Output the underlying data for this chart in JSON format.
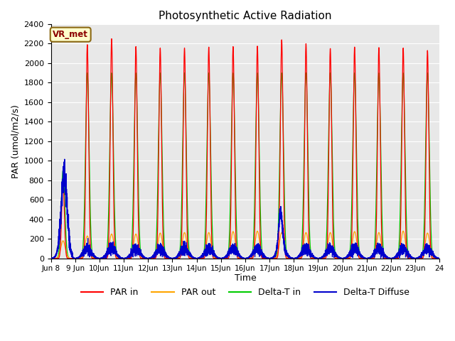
{
  "title": "Photosynthetic Active Radiation",
  "ylabel": "PAR (umol/m2/s)",
  "xlabel": "Time",
  "ylim": [
    0,
    2400
  ],
  "yticks": [
    0,
    200,
    400,
    600,
    800,
    1000,
    1200,
    1400,
    1600,
    1800,
    2000,
    2200,
    2400
  ],
  "xtick_positions": [
    0,
    1,
    2,
    3,
    4,
    5,
    6,
    7,
    8,
    9,
    10,
    11,
    12,
    13,
    14,
    15,
    16
  ],
  "xtick_labels": [
    "Jun 8",
    "9 Jun",
    "10Jun",
    "11Jun",
    "12Jun",
    "13Jun",
    "14Jun",
    "15Jun",
    "16Jun",
    "17Jun",
    "18Jun",
    "19Jun",
    "20Jun",
    "21Jun",
    "22Jun",
    "23Jun",
    "24"
  ],
  "colors": {
    "PAR_in": "#ff0000",
    "PAR_out": "#ffa500",
    "Delta_T_in": "#00cc00",
    "Delta_T_Diffuse": "#0000cc"
  },
  "annotation_text": "VR_met",
  "plot_bg": "#e8e8e8",
  "grid_color": "#ffffff",
  "par_in_peaks": [
    2190,
    2250,
    2170,
    2155,
    2155,
    2165,
    2170,
    2175,
    2240,
    2200,
    2150,
    2165,
    2160,
    2155,
    2130
  ],
  "par_out_peaks": [
    230,
    250,
    250,
    260,
    265,
    265,
    275,
    280,
    265,
    265,
    265,
    275,
    265,
    280,
    260
  ],
  "green_peaks": [
    1900,
    1900,
    1900,
    1900,
    1900,
    1900,
    1900,
    1900,
    1900,
    1900,
    1900,
    1900,
    1900,
    1900,
    1900
  ],
  "par_in_sigma": 1.3,
  "par_out_sigma": 2.2,
  "green_sigma": 1.8,
  "blue_base": 100,
  "blue_noise_amp": 30,
  "first_day_par_in_peak": 800,
  "first_day_blue_peak": 750,
  "jun17_blue_peak": 380
}
